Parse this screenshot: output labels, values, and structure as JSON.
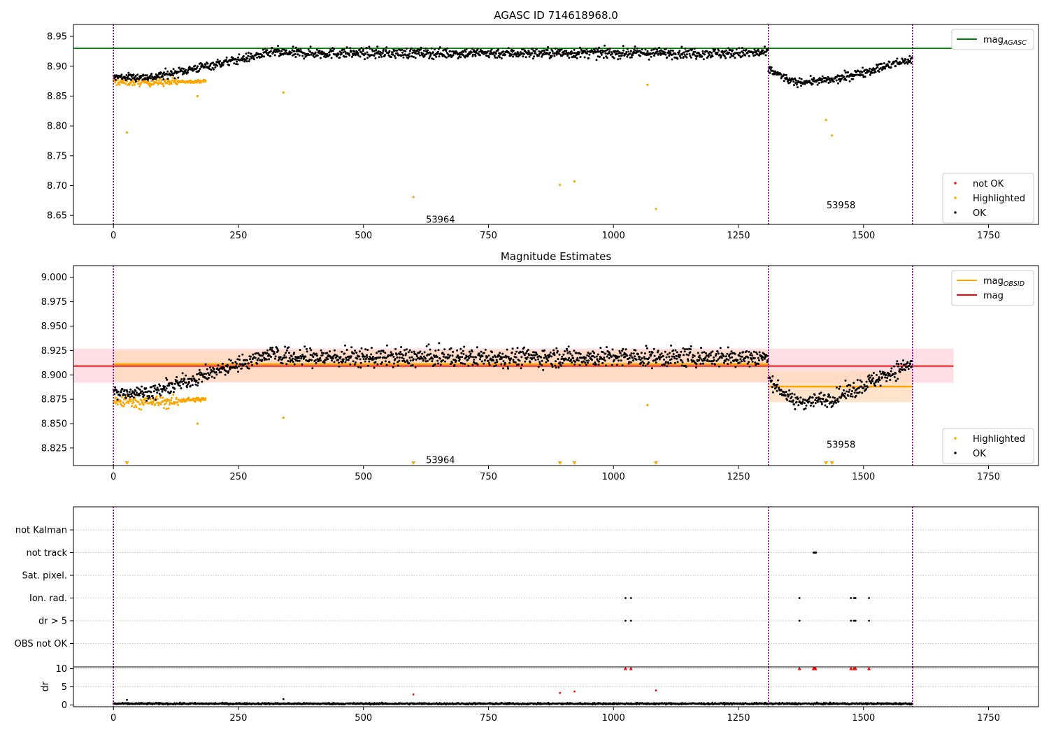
{
  "colors": {
    "ok": "#000000",
    "highlighted": "#ffa500",
    "not_ok": "#ff0000",
    "mag_agasc": "#008000",
    "mag_obsid": "#ffa500",
    "mag": "#ff0000",
    "obs_boundary": "#800080",
    "mag_band": "#ffc0cb",
    "obsid_band": "#ffdab9",
    "grid": "#b0b0b0"
  },
  "chart_data": [
    {
      "type": "scatter",
      "title": "AGASC ID 714618968.0",
      "xlabel": "",
      "ylabel": "",
      "xlim": [
        -80,
        1850
      ],
      "ylim": [
        8.635,
        8.97
      ],
      "xticks": [
        "0",
        "250",
        "500",
        "750",
        "1000",
        "1250",
        "1500",
        "1750"
      ],
      "yticks": [
        "8.65",
        "8.70",
        "8.75",
        "8.80",
        "8.85",
        "8.90",
        "8.95"
      ],
      "obs_boundaries": [
        0,
        1310,
        1598
      ],
      "obs_labels": [
        {
          "obsid": "53964",
          "x": 654,
          "y": 8.644
        },
        {
          "obsid": "53958",
          "x": 1455,
          "y": 8.668
        }
      ],
      "mag_agasc": 8.93,
      "mag_agasc_xrange": [
        -80,
        1680
      ],
      "series": [
        {
          "name": "not OK",
          "kind": "marker",
          "values": []
        },
        {
          "name": "Highlighted",
          "kind": "marker",
          "ranges": [
            {
              "x0": 0,
              "x1": 130,
              "y_start": 8.874,
              "y_end": 8.873,
              "noise": 0.006
            },
            {
              "x0": 130,
              "x1": 185,
              "y_start": 8.874,
              "y_end": 8.875,
              "noise": 0.002
            }
          ],
          "outliers": [
            [
              27,
              8.789
            ],
            [
              168,
              8.85
            ],
            [
              340,
              8.856
            ],
            [
              600,
              8.681
            ],
            [
              893,
              8.701
            ],
            [
              922,
              8.707
            ],
            [
              1068,
              8.869
            ],
            [
              1085,
              8.661
            ],
            [
              1425,
              8.81
            ],
            [
              1437,
              8.784
            ]
          ]
        },
        {
          "name": "OK",
          "kind": "marker",
          "ranges": [
            {
              "x0": 0,
              "x1": 80,
              "y_start": 8.882,
              "y_end": 8.882,
              "noise": 0.006
            },
            {
              "x0": 80,
              "x1": 330,
              "y_start": 8.882,
              "y_end": 8.925,
              "noise": 0.007
            },
            {
              "x0": 330,
              "x1": 1310,
              "y_start": 8.922,
              "y_end": 8.922,
              "noise": 0.008
            },
            {
              "x0": 1310,
              "x1": 1360,
              "y_start": 8.895,
              "y_end": 8.873,
              "noise": 0.006
            },
            {
              "x0": 1360,
              "x1": 1440,
              "y_start": 8.873,
              "y_end": 8.877,
              "noise": 0.006
            },
            {
              "x0": 1440,
              "x1": 1598,
              "y_start": 8.877,
              "y_end": 8.912,
              "noise": 0.007
            }
          ]
        },
        {
          "name": "mag_AGASC",
          "kind": "line",
          "values": [
            8.93
          ]
        }
      ],
      "legend_upper": [
        {
          "label": "mag",
          "sub": "AGASC",
          "color_key": "mag_agasc"
        }
      ],
      "legend_lower": [
        {
          "label": "not OK",
          "color_key": "not_ok"
        },
        {
          "label": "Highlighted",
          "color_key": "highlighted"
        },
        {
          "label": "OK",
          "color_key": "ok"
        }
      ]
    },
    {
      "type": "scatter",
      "title": "Magnitude Estimates",
      "xlabel": "",
      "ylabel": "",
      "xlim": [
        -80,
        1850
      ],
      "ylim": [
        8.807,
        9.012
      ],
      "xticks": [
        "0",
        "250",
        "500",
        "750",
        "1000",
        "1250",
        "1500",
        "1750"
      ],
      "yticks": [
        "8.825",
        "8.850",
        "8.875",
        "8.900",
        "8.925",
        "8.950",
        "8.975",
        "9.000"
      ],
      "obs_boundaries": [
        0,
        1310,
        1598
      ],
      "obs_labels": [
        {
          "obsid": "53964",
          "x": 654,
          "y": 8.813
        },
        {
          "obsid": "53958",
          "x": 1455,
          "y": 8.829
        }
      ],
      "mag": 8.909,
      "mag_band": [
        8.892,
        8.927
      ],
      "mag_xrange": [
        -80,
        1680
      ],
      "mag_obsid": [
        {
          "obsid": "53964",
          "x0": 0,
          "x1": 1310,
          "value": 8.911,
          "band": [
            8.893,
            8.925
          ]
        },
        {
          "obsid": "53958",
          "x0": 1310,
          "x1": 1598,
          "value": 8.888,
          "band": [
            8.872,
            8.904
          ]
        }
      ],
      "triangles_x": [
        27,
        600,
        893,
        922,
        1085,
        1425,
        1437
      ],
      "series": [
        {
          "name": "Highlighted",
          "kind": "marker",
          "ranges": [
            {
              "x0": 0,
              "x1": 130,
              "y_start": 8.873,
              "y_end": 8.872,
              "noise": 0.006
            },
            {
              "x0": 130,
              "x1": 185,
              "y_start": 8.874,
              "y_end": 8.875,
              "noise": 0.002
            }
          ],
          "outliers": [
            [
              168,
              8.85
            ],
            [
              340,
              8.856
            ],
            [
              1068,
              8.869
            ]
          ]
        },
        {
          "name": "OK",
          "kind": "marker",
          "ranges": [
            {
              "x0": 0,
              "x1": 80,
              "y_start": 8.882,
              "y_end": 8.882,
              "noise": 0.006
            },
            {
              "x0": 80,
              "x1": 330,
              "y_start": 8.882,
              "y_end": 8.925,
              "noise": 0.007
            },
            {
              "x0": 330,
              "x1": 1310,
              "y_start": 8.918,
              "y_end": 8.918,
              "noise": 0.009
            },
            {
              "x0": 1310,
              "x1": 1360,
              "y_start": 8.895,
              "y_end": 8.873,
              "noise": 0.006
            },
            {
              "x0": 1360,
              "x1": 1440,
              "y_start": 8.872,
              "y_end": 8.876,
              "noise": 0.007
            },
            {
              "x0": 1440,
              "x1": 1598,
              "y_start": 8.876,
              "y_end": 8.912,
              "noise": 0.008
            }
          ]
        },
        {
          "name": "mag_OBSID",
          "kind": "line",
          "values": [
            8.911,
            8.888
          ]
        },
        {
          "name": "mag",
          "kind": "line",
          "values": [
            8.909
          ]
        }
      ],
      "legend_upper": [
        {
          "label": "mag",
          "sub": "OBSID",
          "color_key": "mag_obsid"
        },
        {
          "label": "mag",
          "sub": "",
          "color_key": "mag"
        }
      ],
      "legend_lower": [
        {
          "label": "Highlighted",
          "color_key": "highlighted"
        },
        {
          "label": "OK",
          "color_key": "ok"
        }
      ]
    },
    {
      "type": "scatter",
      "title": "",
      "xlabel": "",
      "ylabel": "",
      "xlim": [
        -80,
        1850
      ],
      "xticks": [
        "0",
        "250",
        "500",
        "750",
        "1000",
        "1250",
        "1500",
        "1750"
      ],
      "obs_boundaries": [
        0,
        1310,
        1598
      ],
      "flag_categories": [
        "not Kalman",
        "not track",
        "Sat. pixel.",
        "Ion. rad.",
        "dr > 5",
        "OBS not OK"
      ],
      "flags": [
        {
          "category": "not track",
          "x": [
            1400,
            1401,
            1402,
            1403,
            1404,
            1405
          ]
        },
        {
          "category": "Ion. rad.",
          "x": [
            1024,
            1035,
            1372,
            1475,
            1481,
            1484,
            1511
          ]
        },
        {
          "category": "dr > 5",
          "x": [
            1024,
            1035,
            1372,
            1475,
            1481,
            1484,
            1511
          ]
        }
      ]
    },
    {
      "type": "scatter",
      "title": "",
      "xlabel": "",
      "ylabel": "dr",
      "xlim": [
        -80,
        1850
      ],
      "ylim": [
        -0.5,
        10.5
      ],
      "xticks": [
        "0",
        "250",
        "500",
        "750",
        "1000",
        "1250",
        "1500",
        "1750"
      ],
      "yticks": [
        "0",
        "5",
        "10"
      ],
      "obs_boundaries": [
        0,
        1310,
        1598
      ],
      "series": [
        {
          "name": "OK",
          "kind": "marker",
          "baseline": 0.35,
          "noise": 0.3,
          "x0": 0,
          "x1": 1598
        },
        {
          "name": "outliers",
          "kind": "marker",
          "points": [
            [
              27,
              1.4
            ],
            [
              340,
              1.6
            ],
            [
              600,
              2.9
            ],
            [
              893,
              3.3
            ],
            [
              922,
              3.7
            ],
            [
              1085,
              4.0
            ]
          ]
        },
        {
          "name": "not OK",
          "kind": "triangle",
          "x": [
            1024,
            1035,
            1372,
            1400,
            1402,
            1404,
            1475,
            1481,
            1484,
            1511
          ],
          "value": 10
        }
      ]
    }
  ]
}
